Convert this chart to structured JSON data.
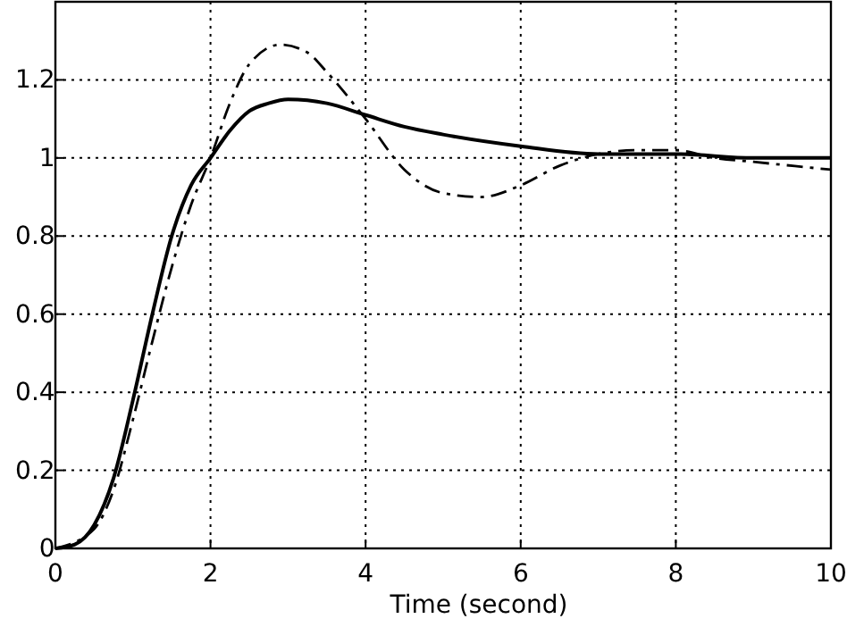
{
  "chart_data": {
    "type": "line",
    "xlabel": "Time (second)",
    "xlim": [
      0,
      10
    ],
    "xticks": [
      0,
      2,
      4,
      6,
      8,
      10
    ],
    "ylim": [
      0,
      1.4
    ],
    "yticks": [
      0,
      0.2,
      0.4,
      0.6,
      0.8,
      1,
      1.2
    ],
    "grid": true,
    "marker": "none",
    "series": [
      {
        "color": "#000000",
        "line_style": "solid",
        "x": [
          0,
          0.25,
          0.5,
          0.75,
          1,
          1.25,
          1.5,
          1.75,
          2,
          2.25,
          2.5,
          2.75,
          3,
          3.5,
          4,
          4.5,
          5,
          6,
          7,
          8,
          9,
          10
        ],
        "values": [
          0,
          0.01,
          0.06,
          0.18,
          0.38,
          0.6,
          0.8,
          0.93,
          1.0,
          1.07,
          1.12,
          1.14,
          1.15,
          1.14,
          1.11,
          1.08,
          1.06,
          1.03,
          1.01,
          1.01,
          1.0,
          1.0
        ]
      },
      {
        "color": "#000000",
        "line_style": "dashed",
        "x": [
          0,
          0.5,
          0.75,
          1,
          1.25,
          1.5,
          1.75,
          2,
          2.25,
          2.5,
          2.9,
          3.25,
          3.5,
          4,
          4.5,
          5,
          5.5,
          6,
          6.5,
          7,
          7.5,
          8,
          8.5,
          9,
          10
        ],
        "values": [
          0,
          0.05,
          0.15,
          0.33,
          0.53,
          0.72,
          0.88,
          1.0,
          1.14,
          1.24,
          1.29,
          1.27,
          1.22,
          1.1,
          0.97,
          0.91,
          0.9,
          0.93,
          0.98,
          1.01,
          1.02,
          1.02,
          1.0,
          0.99,
          0.97
        ]
      }
    ]
  }
}
